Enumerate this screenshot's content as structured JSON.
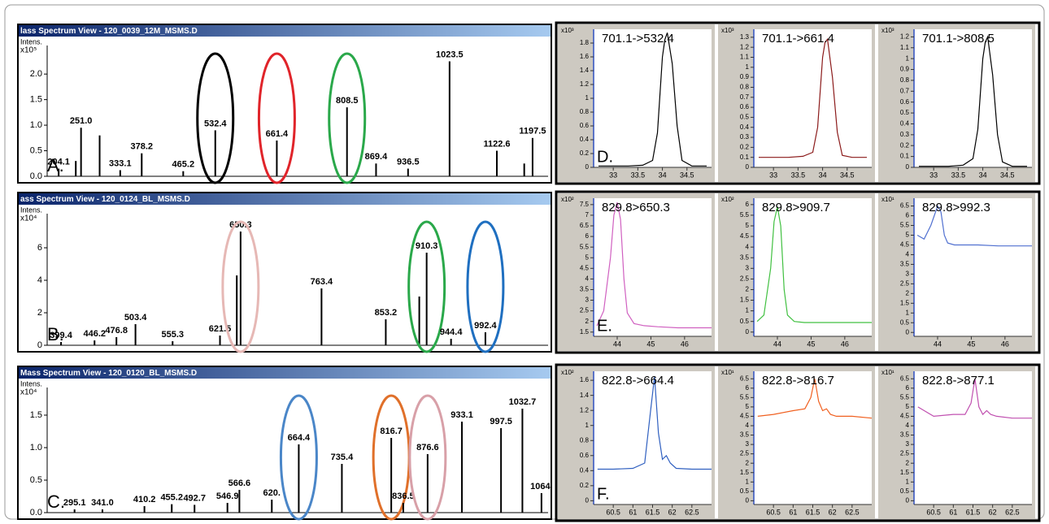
{
  "chart_data": [
    {
      "type": "stick",
      "title": "lass Spectrum View - 120_0039_12M_MSMS.D",
      "y_label": "Intens.",
      "y_multiplier": "x10⁵",
      "panel_label": "A.",
      "xlim": [
        180,
        1230
      ],
      "ylim": [
        0,
        2.4
      ],
      "yticks": [
        {
          "value": 0,
          "label": "0.0"
        },
        {
          "value": 0.5,
          "label": "0.5"
        },
        {
          "value": 1,
          "label": "1.0"
        },
        {
          "value": 1.5,
          "label": "1.5"
        },
        {
          "value": 2,
          "label": "2.0"
        }
      ],
      "x": [
        204.1,
        240,
        251.0,
        290,
        333.1,
        378.2,
        465.2,
        532.4,
        661.4,
        808.5,
        869.4,
        936.5,
        1023.5,
        1122.6,
        1180,
        1197.5
      ],
      "values": [
        0.15,
        0.3,
        0.95,
        0.8,
        0.12,
        0.45,
        0.1,
        0.9,
        0.7,
        1.35,
        0.25,
        0.15,
        2.25,
        0.5,
        0.25,
        0.75
      ],
      "peak_labels": [
        "204.1",
        null,
        "251.0",
        null,
        "333.1",
        "378.2",
        "465.2",
        "532.4",
        "661.4",
        "808.5",
        "869.4",
        "936.5",
        "1023.5",
        "1122.6",
        null,
        "1197.5"
      ],
      "highlight_colors": [
        null,
        null,
        null,
        null,
        null,
        null,
        null,
        "#000000",
        "#e0242a",
        "#2aa84a",
        null,
        null,
        null,
        null,
        null,
        null
      ],
      "color": "#000000"
    },
    {
      "type": "stick",
      "title": "ass Spectrum View - 120_0124_BL_MSMS.D",
      "y_label": "Intens.",
      "y_multiplier": "x10⁴",
      "panel_label": "B.",
      "xlim": [
        380,
        1080
      ],
      "ylim": [
        0,
        7.6
      ],
      "yticks": [
        0,
        2,
        4,
        6
      ],
      "x": [
        399.4,
        446.2,
        476.8,
        503.4,
        555.3,
        621.5,
        645,
        650.3,
        763.4,
        853.2,
        900,
        910.3,
        944.4,
        992.4
      ],
      "values": [
        0.2,
        0.3,
        0.5,
        1.3,
        0.25,
        0.6,
        4.3,
        7.0,
        3.5,
        1.6,
        3.0,
        5.7,
        0.4,
        0.8
      ],
      "peak_labels": [
        "399.4",
        "446.2",
        "476.8",
        "503.4",
        "555.3",
        "621.5",
        null,
        "650.3",
        "763.4",
        "853.2",
        null,
        "910.3",
        "944.4",
        "992.4"
      ],
      "highlight_colors": [
        null,
        null,
        null,
        null,
        null,
        null,
        null,
        "#e6b8b5",
        null,
        null,
        null,
        "#2aa84a",
        null,
        "#1f6fc0"
      ],
      "color": "#000000"
    },
    {
      "type": "stick",
      "title": "Mass Spectrum View - 120_0120_BL_MSMS.D",
      "y_label": "Intens.",
      "y_multiplier": "x10⁴",
      "panel_label": "C.",
      "xlim": [
        250,
        1075
      ],
      "ylim": [
        0,
        1.8
      ],
      "yticks": [
        {
          "value": 0,
          "label": "0.0"
        },
        {
          "value": 0.5,
          "label": "0.5"
        },
        {
          "value": 1,
          "label": "1.0"
        },
        {
          "value": 1.5,
          "label": "1.5"
        }
      ],
      "x": [
        295.1,
        341.0,
        410.2,
        455.2,
        492.7,
        546.9,
        566.6,
        620,
        664.4,
        735.4,
        816.7,
        836.5,
        876.6,
        933.1,
        997.5,
        1032.7,
        1064.1
      ],
      "values": [
        0.05,
        0.05,
        0.1,
        0.13,
        0.12,
        0.15,
        0.35,
        0.2,
        1.05,
        0.75,
        1.15,
        0.15,
        0.9,
        1.4,
        1.3,
        1.6,
        0.3
      ],
      "peak_labels": [
        "295.1",
        "341.0",
        "410.2",
        "455.2",
        "492.7",
        "546.9",
        "566.6",
        "620.",
        "664.4",
        "735.4",
        "816.7",
        "836.5",
        "876.6",
        "933.1",
        "997.5",
        "1032.7",
        "1064."
      ],
      "highlight_colors": [
        null,
        null,
        null,
        null,
        null,
        null,
        null,
        null,
        "#4a86c8",
        null,
        "#e0702a",
        null,
        "#d8a0a8",
        null,
        null,
        null,
        null
      ],
      "color": "#000000"
    },
    {
      "type": "line",
      "title": "701.1->532.4",
      "y_multiplier": "x10³",
      "panel_label": "D.",
      "xlim": [
        32.6,
        35
      ],
      "ylim": [
        0,
        2.0
      ],
      "xticks": [
        33,
        33.5,
        34,
        34.5
      ],
      "yticks": [
        0,
        0.2,
        0.4,
        0.6,
        0.8,
        1,
        1.2,
        1.4,
        1.6,
        1.8
      ],
      "x": [
        32.7,
        33,
        33.3,
        33.6,
        33.8,
        33.9,
        34,
        34.05,
        34.1,
        34.2,
        34.3,
        34.4,
        34.6,
        34.9
      ],
      "values": [
        0.02,
        0.02,
        0.02,
        0.03,
        0.1,
        0.5,
        1.6,
        1.85,
        1.95,
        1.5,
        0.6,
        0.1,
        0.02,
        0.02
      ],
      "color": "#000000"
    },
    {
      "type": "line",
      "title": "701.1->661.4",
      "y_multiplier": "x10³",
      "xlim": [
        32.6,
        35
      ],
      "ylim": [
        0,
        1.38
      ],
      "xticks": [
        33,
        33.5,
        34,
        34.5
      ],
      "yticks": [
        0,
        0.1,
        0.2,
        0.3,
        0.4,
        0.5,
        0.6,
        0.7,
        0.8,
        0.9,
        1,
        1.1,
        1.2,
        1.3
      ],
      "x": [
        32.7,
        33,
        33.3,
        33.6,
        33.8,
        33.9,
        34,
        34.05,
        34.1,
        34.2,
        34.3,
        34.4,
        34.6,
        34.9
      ],
      "values": [
        0.1,
        0.1,
        0.1,
        0.11,
        0.15,
        0.4,
        1.1,
        1.25,
        1.28,
        0.9,
        0.35,
        0.12,
        0.1,
        0.1
      ],
      "color": "#8b1a1a"
    },
    {
      "type": "line",
      "title": "701.1->808.5",
      "y_multiplier": "x10³",
      "xlim": [
        32.6,
        35
      ],
      "ylim": [
        0,
        1.27
      ],
      "xticks": [
        33,
        33.5,
        34,
        34.5
      ],
      "yticks": [
        0,
        0.1,
        0.2,
        0.3,
        0.4,
        0.5,
        0.6,
        0.7,
        0.8,
        0.9,
        1,
        1.1,
        1.2
      ],
      "x": [
        32.7,
        33,
        33.3,
        33.6,
        33.8,
        33.9,
        34,
        34.05,
        34.1,
        34.2,
        34.3,
        34.4,
        34.6,
        34.9
      ],
      "values": [
        0.01,
        0.01,
        0.01,
        0.02,
        0.08,
        0.35,
        1.0,
        1.15,
        1.2,
        0.85,
        0.3,
        0.05,
        0.01,
        0.01
      ],
      "color": "#000000"
    },
    {
      "type": "line",
      "title": "829.8>650.3",
      "y_multiplier": "x10²",
      "panel_label": "E.",
      "xlim": [
        43.3,
        46.8
      ],
      "ylim": [
        1.3,
        7.8
      ],
      "xticks": [
        44,
        45,
        46
      ],
      "yticks": [
        1.5,
        2,
        2.5,
        3,
        3.5,
        4,
        4.5,
        5,
        5.5,
        6,
        6.5,
        7,
        7.5
      ],
      "x": [
        43.4,
        43.6,
        43.8,
        43.9,
        44,
        44.1,
        44.2,
        44.3,
        44.5,
        44.8,
        45.2,
        45.8,
        46.4,
        46.8
      ],
      "values": [
        1.8,
        2.5,
        5,
        7,
        7.6,
        6.8,
        4,
        2.4,
        1.9,
        1.8,
        1.75,
        1.7,
        1.7,
        1.7
      ],
      "color": "#d060c0"
    },
    {
      "type": "line",
      "title": "829.8>909.7",
      "y_multiplier": "x10²",
      "xlim": [
        43.3,
        46.8
      ],
      "ylim": [
        -0.2,
        6.3
      ],
      "xticks": [
        44,
        45,
        46
      ],
      "yticks": [
        0,
        0.5,
        1,
        1.5,
        2,
        2.5,
        3,
        3.5,
        4,
        4.5,
        5,
        5.5,
        6
      ],
      "x": [
        43.4,
        43.6,
        43.8,
        43.9,
        44,
        44.1,
        44.2,
        44.3,
        44.5,
        44.8,
        45.2,
        45.8,
        46.4,
        46.8
      ],
      "values": [
        0.5,
        0.8,
        3,
        5.2,
        5.9,
        5,
        2,
        0.8,
        0.5,
        0.45,
        0.45,
        0.45,
        0.45,
        0.45
      ],
      "color": "#40c040"
    },
    {
      "type": "line",
      "title": "829.8>992.3",
      "y_multiplier": "x10¹",
      "xlim": [
        43.3,
        46.8
      ],
      "ylim": [
        -0.2,
        6.9
      ],
      "xticks": [
        44,
        45,
        46
      ],
      "yticks": [
        0,
        0.5,
        1,
        1.5,
        2,
        2.5,
        3,
        3.5,
        4,
        4.5,
        5,
        5.5,
        6,
        6.5
      ],
      "x": [
        43.4,
        43.6,
        43.8,
        43.9,
        44,
        44.1,
        44.2,
        44.3,
        44.5,
        44.8,
        45.2,
        45.8,
        46.4,
        46.8
      ],
      "values": [
        5,
        4.8,
        5.5,
        6,
        6.5,
        6.2,
        5,
        4.6,
        4.5,
        4.5,
        4.5,
        4.45,
        4.45,
        4.45
      ],
      "color": "#5070d0"
    },
    {
      "type": "line",
      "title": "822.8->664.4",
      "y_multiplier": "x10²",
      "panel_label": "F.",
      "xlim": [
        60,
        63
      ],
      "ylim": [
        -0.05,
        1.72
      ],
      "xticks": [
        60.5,
        61,
        61.5,
        62,
        62.5
      ],
      "yticks": [
        0,
        0.2,
        0.4,
        0.6,
        0.8,
        1,
        1.2,
        1.4,
        1.6
      ],
      "x": [
        60.1,
        60.5,
        61,
        61.3,
        61.45,
        61.55,
        61.65,
        61.75,
        61.85,
        61.95,
        62.1,
        62.5,
        63
      ],
      "values": [
        0.42,
        0.42,
        0.43,
        0.5,
        1.2,
        1.65,
        0.9,
        0.55,
        0.6,
        0.5,
        0.43,
        0.42,
        0.42
      ],
      "color": "#3060c0"
    },
    {
      "type": "line",
      "title": "822.8->816.7",
      "y_multiplier": "x10¹",
      "xlim": [
        60,
        63
      ],
      "ylim": [
        -0.2,
        6.9
      ],
      "xticks": [
        60.5,
        61,
        61.5,
        62,
        62.5
      ],
      "yticks": [
        0,
        0.5,
        1,
        1.5,
        2,
        2.5,
        3,
        3.5,
        4,
        4.5,
        5,
        5.5,
        6,
        6.5
      ],
      "x": [
        60.1,
        60.5,
        61,
        61.3,
        61.45,
        61.55,
        61.65,
        61.75,
        61.85,
        61.95,
        62.1,
        62.5,
        63
      ],
      "values": [
        4.5,
        4.6,
        4.8,
        4.9,
        5.5,
        6.5,
        5.3,
        4.8,
        4.9,
        4.6,
        4.5,
        4.5,
        4.4
      ],
      "color": "#f06020"
    },
    {
      "type": "line",
      "title": "822.8->877.1",
      "y_multiplier": "x10¹",
      "xlim": [
        60,
        63
      ],
      "ylim": [
        -0.2,
        6.9
      ],
      "xticks": [
        60.5,
        61,
        61.5,
        62,
        62.5
      ],
      "yticks": [
        0,
        0.5,
        1,
        1.5,
        2,
        2.5,
        3,
        3.5,
        4,
        4.5,
        5,
        5.5,
        6,
        6.5
      ],
      "x": [
        60.1,
        60.5,
        61,
        61.3,
        61.45,
        61.55,
        61.65,
        61.75,
        61.85,
        61.95,
        62.1,
        62.5,
        63
      ],
      "values": [
        5,
        4.5,
        4.6,
        4.6,
        5.2,
        6.5,
        5,
        4.6,
        4.8,
        4.6,
        4.5,
        4.4,
        4.4
      ],
      "color": "#c050b0"
    }
  ]
}
